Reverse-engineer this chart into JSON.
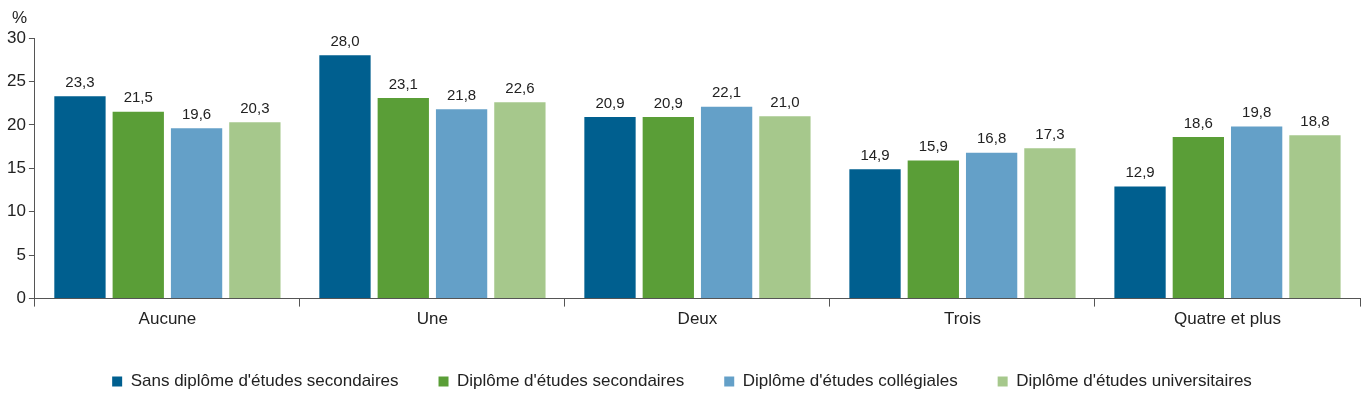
{
  "chart_data": {
    "type": "bar",
    "ylabel": "%",
    "categories": [
      "Aucune",
      "Une",
      "Deux",
      "Trois",
      "Quatre et plus"
    ],
    "series": [
      {
        "name": "Sans diplôme d'études secondaires",
        "color": "#005f8f",
        "values": [
          23.3,
          28.0,
          20.9,
          14.9,
          12.9
        ],
        "value_labels": [
          "23,3",
          "28,0",
          "20,9",
          "14,9",
          "12,9"
        ]
      },
      {
        "name": "Diplôme d'études secondaires",
        "color": "#5a9e37",
        "values": [
          21.5,
          23.1,
          20.9,
          15.9,
          18.6
        ],
        "value_labels": [
          "21,5",
          "23,1",
          "20,9",
          "15,9",
          "18,6"
        ]
      },
      {
        "name": "Diplôme d'études collégiales",
        "color": "#64a0c8",
        "values": [
          19.6,
          21.8,
          22.1,
          16.8,
          19.8
        ],
        "value_labels": [
          "19,6",
          "21,8",
          "22,1",
          "16,8",
          "19,8"
        ]
      },
      {
        "name": "Diplôme d'études universitaires",
        "color": "#a6c88c",
        "values": [
          20.3,
          22.6,
          21.0,
          17.3,
          18.8
        ],
        "value_labels": [
          "20,3",
          "22,6",
          "21,0",
          "17,3",
          "18,8"
        ]
      }
    ],
    "ylim": [
      0,
      30
    ],
    "yticks": [
      0,
      5,
      10,
      15,
      20,
      25,
      30
    ],
    "grid": false,
    "legend": "bottom"
  }
}
